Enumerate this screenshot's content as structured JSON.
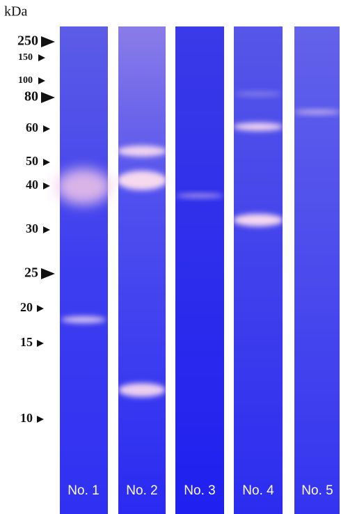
{
  "header": {
    "unit": "kDa"
  },
  "markers": [
    "250",
    "150",
    "100",
    "80",
    "60",
    "50",
    "40",
    "30",
    "25",
    "20",
    "15",
    "10"
  ],
  "lanes": [
    "No. 1",
    "No. 2",
    "No. 3",
    "No. 4",
    "No. 5"
  ]
}
